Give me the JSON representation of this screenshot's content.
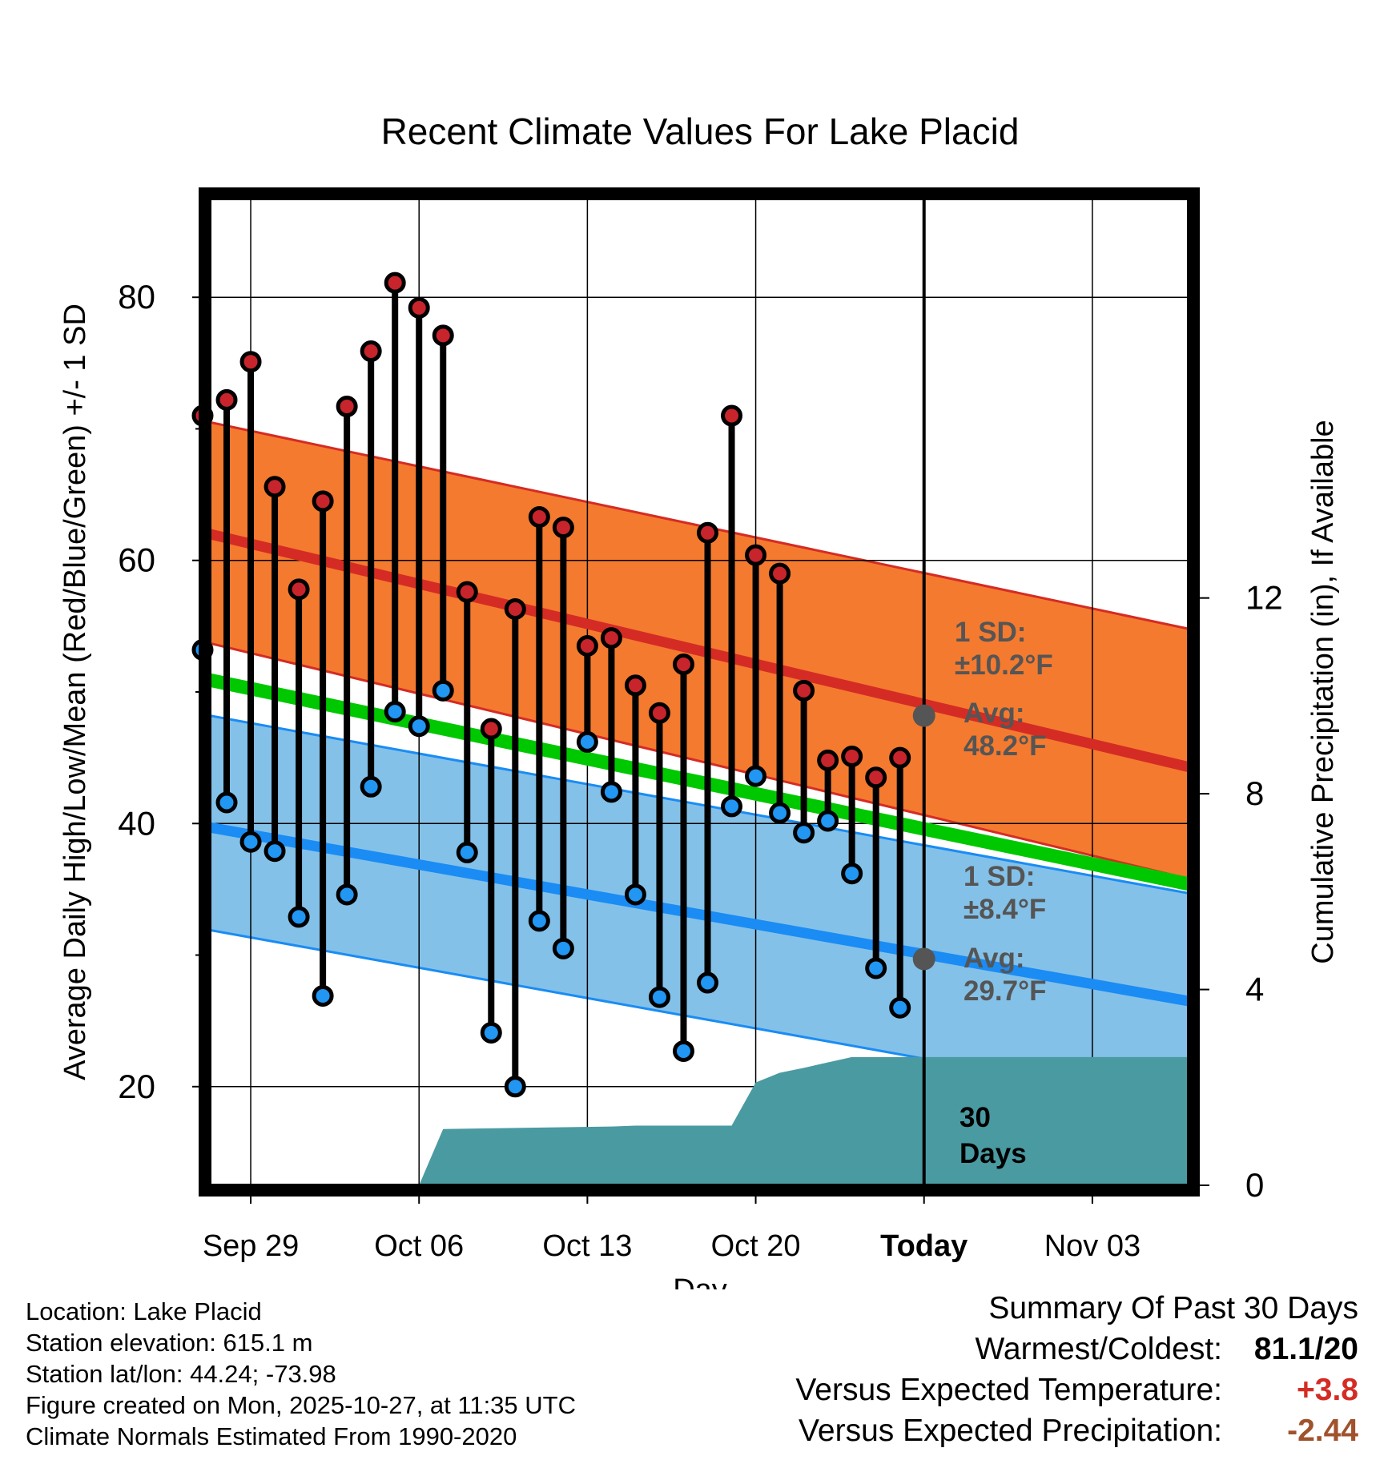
{
  "chart_data": {
    "type": "line",
    "title": "Recent Climate Values For Lake Placid",
    "xlabel": "Day",
    "ylabel_left": "Average Daily High/Low/Mean (Red/Blue/Green) +/- 1 SD",
    "ylabel_right": "Cumulative Precipitation (in), If Available",
    "x_day_range": [
      -29.7,
      11.0
    ],
    "ylim_left": [
      12.5,
      87.5
    ],
    "ylim_right": [
      0,
      20.16
    ],
    "x_ticks": [
      {
        "day": -28,
        "label": "Sep 29"
      },
      {
        "day": -21,
        "label": "Oct 06"
      },
      {
        "day": -14,
        "label": "Oct 13"
      },
      {
        "day": -7,
        "label": "Oct 20"
      },
      {
        "day": 0,
        "label": "Today"
      },
      {
        "day": 7,
        "label": "Nov 03"
      }
    ],
    "y_ticks_left": [
      20,
      40,
      60,
      80
    ],
    "y_ticks_right": [
      0,
      4,
      8,
      12
    ],
    "normal_high": {
      "start": 62.0,
      "end": 44.3
    },
    "normal_low": {
      "start": 39.7,
      "end": 26.5
    },
    "normal_mean": {
      "start": 50.9,
      "end": 35.4
    },
    "high_sd_band": {
      "upper_start": 70.5,
      "upper_end": 54.8,
      "lower_start": 53.7,
      "lower_end": 35.8
    },
    "low_sd_band": {
      "upper_start": 48.2,
      "upper_end": 34.7,
      "lower_start": 31.9,
      "lower_end": 18.5
    },
    "daily": {
      "days": [
        -30,
        -29,
        -28,
        -27,
        -26,
        -25,
        -24,
        -23,
        -22,
        -21,
        -20,
        -19,
        -18,
        -17,
        -16,
        -15,
        -14,
        -13,
        -12,
        -11,
        -10,
        -9,
        -8,
        -7,
        -6,
        -5,
        -4,
        -3,
        -2,
        -1
      ],
      "highs": [
        71.0,
        72.2,
        75.1,
        65.6,
        57.8,
        64.5,
        71.7,
        75.9,
        81.1,
        79.2,
        77.1,
        57.6,
        47.2,
        56.3,
        63.3,
        62.5,
        53.5,
        54.1,
        50.5,
        48.4,
        52.1,
        62.1,
        71.0,
        60.4,
        59.0,
        50.1,
        44.8,
        45.1,
        43.5,
        45.0
      ],
      "lows": [
        53.2,
        41.6,
        38.6,
        37.9,
        32.9,
        26.9,
        34.6,
        42.8,
        48.5,
        47.4,
        50.1,
        37.8,
        24.1,
        20.0,
        32.6,
        30.5,
        46.2,
        42.4,
        34.6,
        26.8,
        22.7,
        27.9,
        41.3,
        43.6,
        40.8,
        39.3,
        40.2,
        36.2,
        29.0,
        26.0
      ]
    },
    "cumulative_precip": {
      "days": [
        -21,
        -20,
        -13,
        -12,
        -8,
        -7,
        -6,
        -5,
        -3,
        11
      ],
      "inches": [
        0,
        1.15,
        1.2,
        1.22,
        1.22,
        2.1,
        2.3,
        2.4,
        2.62,
        2.62
      ]
    },
    "annotations": {
      "high_sd_label": "1 SD:",
      "high_sd_value": "±10.2°F",
      "high_avg_label": "Avg:",
      "high_avg_value": "48.2°F",
      "high_avg_marker": 48.2,
      "low_sd_label": "1 SD:",
      "low_sd_value": "±8.4°F",
      "low_avg_label": "Avg:",
      "low_avg_value": "29.7°F",
      "low_avg_marker": 29.7,
      "window_label_1": "30",
      "window_label_2": "Days"
    },
    "colors": {
      "high_band": "#f47a2f",
      "high_edge": "#d42c24",
      "high_line": "#d42c24",
      "low_band": "#84c1e8",
      "low_edge": "#1a8cf4",
      "low_line": "#1a8cf4",
      "mean_line": "#00c800",
      "precip": "#4a9aa2",
      "high_dot": "#c8242c",
      "low_dot": "#2196f3",
      "annotation": "#555555"
    }
  },
  "footer": {
    "location": "Location: Lake Placid",
    "elevation": "Station elevation: 615.1 m",
    "latlon": "Station lat/lon: 44.24; -73.98",
    "created": "Figure created on Mon, 2025-10-27, at 11:35 UTC",
    "normals": "Climate Normals Estimated From 1990-2020"
  },
  "summary": {
    "title": "Summary Of Past 30 Days",
    "warm_cold_label": "Warmest/Coldest:",
    "warm_cold_value": "81.1/20",
    "temp_label": "Versus Expected Temperature:",
    "temp_value": "+3.8",
    "temp_color": "#d42c24",
    "precip_label": "Versus Expected Precipitation:",
    "precip_value": "-2.44",
    "precip_color": "#a0522d"
  }
}
